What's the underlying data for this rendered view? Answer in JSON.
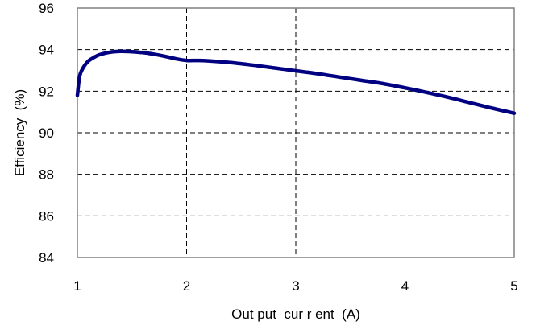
{
  "chart_data": {
    "type": "line",
    "xlabel": "Out put  cur r ent  (A)",
    "ylabel": "Efficiency  (%)",
    "xlim": [
      1,
      5
    ],
    "ylim": [
      84,
      96
    ],
    "xticks": [
      1,
      2,
      3,
      4,
      5
    ],
    "yticks": [
      84,
      86,
      88,
      90,
      92,
      94,
      96
    ],
    "grid": true,
    "series": [
      {
        "color": "#000080",
        "x": [
          1.0,
          1.02,
          1.05,
          1.1,
          1.15,
          1.2,
          1.3,
          1.4,
          1.5,
          1.6,
          1.7,
          1.8,
          1.9,
          2.0,
          2.1,
          2.2,
          2.4,
          2.6,
          2.8,
          3.0,
          3.2,
          3.4,
          3.6,
          3.8,
          4.0,
          4.2,
          4.4,
          4.6,
          4.8,
          5.0
        ],
        "y": [
          91.8,
          92.7,
          93.1,
          93.45,
          93.62,
          93.75,
          93.88,
          93.92,
          93.9,
          93.86,
          93.78,
          93.68,
          93.56,
          93.48,
          93.48,
          93.46,
          93.38,
          93.26,
          93.12,
          92.98,
          92.84,
          92.68,
          92.52,
          92.36,
          92.16,
          91.94,
          91.7,
          91.44,
          91.18,
          90.94
        ]
      }
    ]
  }
}
